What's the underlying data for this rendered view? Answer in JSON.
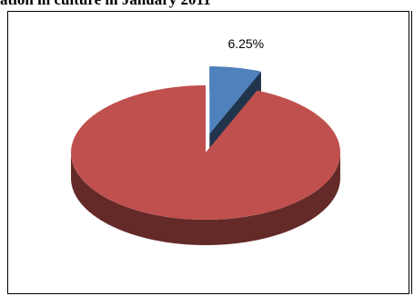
{
  "title": "ation in culture in January 2011",
  "chart_data": {
    "type": "pie",
    "style": "3d-exploded",
    "slices": [
      {
        "value": 6.25,
        "color": "#4f81bd",
        "label": "6.25%"
      },
      {
        "value": 93.75,
        "color": "#c0504d",
        "label": ""
      }
    ]
  }
}
